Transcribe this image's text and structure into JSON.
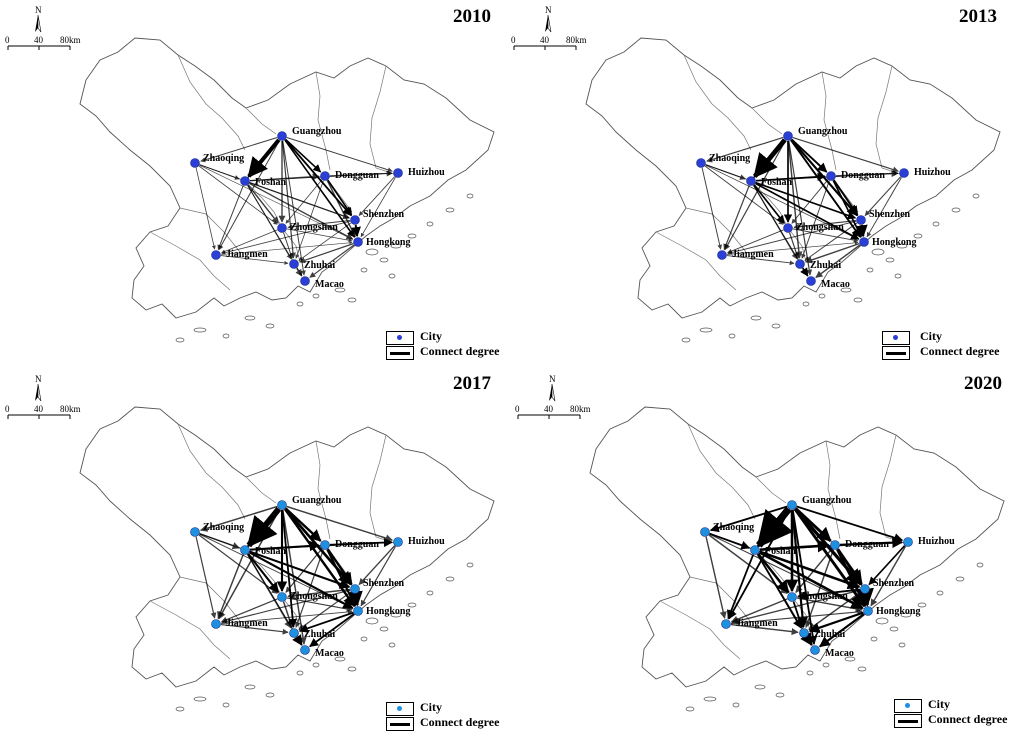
{
  "figure": {
    "city_names": [
      "Guangzhou",
      "Zhaoqing",
      "Foshan",
      "Dongguan",
      "Huizhou",
      "Shenzhen",
      "Zhongshan",
      "Hongkong",
      "Jiangmen",
      "Zhuhai",
      "Macao"
    ],
    "panels": [
      {
        "year": "2010",
        "node_color": "#2a3fd6"
      },
      {
        "year": "2013",
        "node_color": "#2a3fd6"
      },
      {
        "year": "2017",
        "node_color": "#1f8fe0"
      },
      {
        "year": "2020",
        "node_color": "#1f8fe0"
      }
    ],
    "north_label": "N",
    "scale": {
      "t0": "0",
      "t1": "40",
      "t2": "80km"
    },
    "legend": {
      "city": "City",
      "connect": "Connect degree"
    }
  }
}
